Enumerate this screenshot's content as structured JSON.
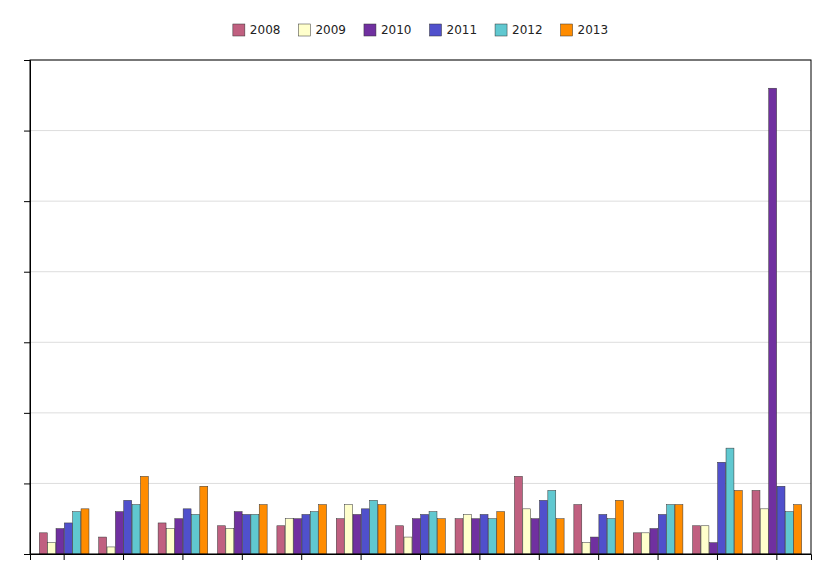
{
  "chart_data": {
    "type": "bar",
    "categories": [
      null,
      null,
      null,
      null,
      null,
      null,
      null,
      null,
      null,
      null,
      null,
      null,
      null
    ],
    "series": [
      {
        "name": "2008",
        "color": "#C06080",
        "values": [
          1.5,
          1.2,
          2.2,
          2.0,
          2.0,
          2.5,
          2.0,
          2.5,
          5.5,
          3.5,
          1.5,
          2.0,
          4.5
        ]
      },
      {
        "name": "2009",
        "color": "#FFFFCC",
        "values": [
          0.8,
          0.5,
          1.8,
          1.8,
          2.5,
          3.5,
          1.2,
          2.8,
          3.2,
          0.8,
          1.5,
          2.0,
          3.2
        ]
      },
      {
        "name": "2010",
        "color": "#7030A0",
        "values": [
          1.8,
          3.0,
          2.5,
          3.0,
          2.5,
          2.8,
          2.5,
          2.5,
          2.5,
          1.2,
          1.8,
          0.8,
          33.0
        ]
      },
      {
        "name": "2011",
        "color": "#5050CC",
        "values": [
          2.2,
          3.8,
          3.2,
          2.8,
          2.8,
          3.2,
          2.8,
          2.8,
          3.8,
          2.8,
          2.8,
          6.5,
          4.8
        ]
      },
      {
        "name": "2012",
        "color": "#60C8D0",
        "values": [
          3.0,
          3.5,
          2.8,
          2.8,
          3.0,
          3.8,
          3.0,
          2.5,
          4.5,
          2.5,
          3.5,
          7.5,
          3.0
        ]
      },
      {
        "name": "2013",
        "color": "#FF8C00",
        "values": [
          3.2,
          5.5,
          4.8,
          3.5,
          3.5,
          3.5,
          2.5,
          3.0,
          2.5,
          3.8,
          3.5,
          4.5,
          3.5
        ]
      }
    ],
    "ylim": [
      0,
      35
    ],
    "yticks": [
      0,
      5,
      10,
      15,
      20,
      25,
      30,
      35
    ],
    "grid": true,
    "legend": "top",
    "tick_labels": false
  }
}
